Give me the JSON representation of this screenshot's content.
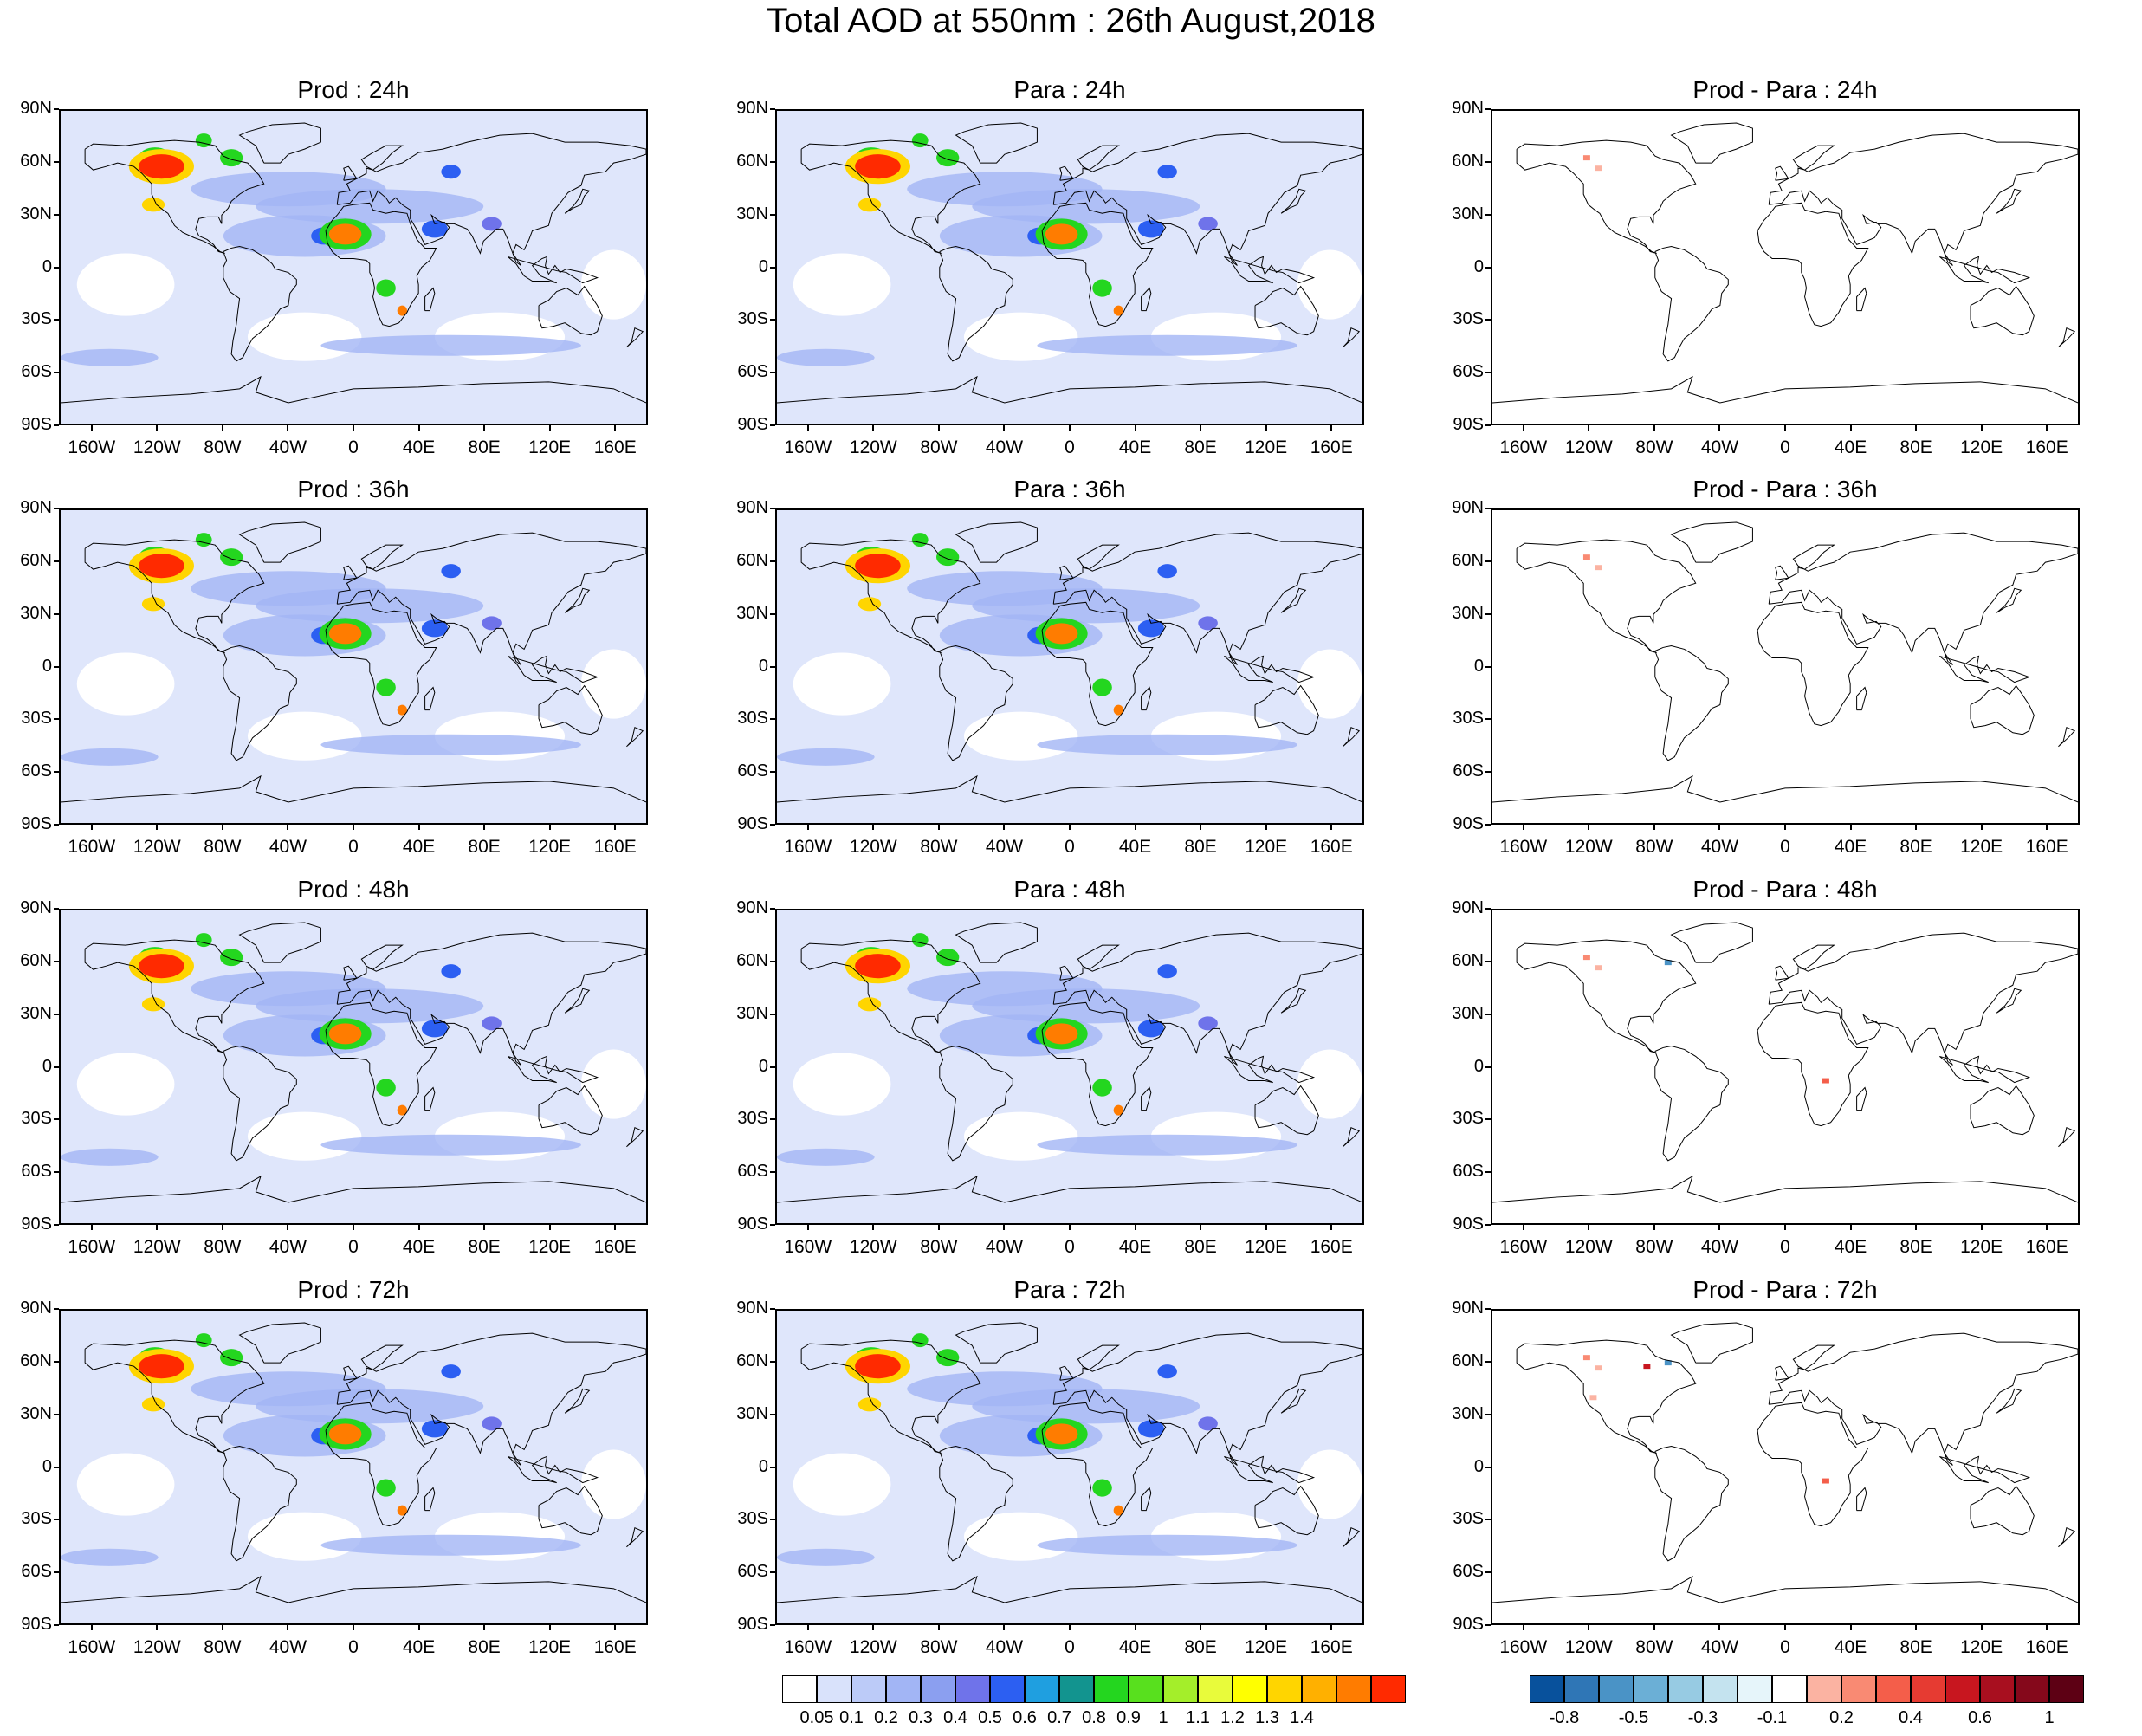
{
  "figure": {
    "title": "Total AOD at 550nm : 26th August,2018"
  },
  "axes": {
    "lat_labels": [
      "90N",
      "60N",
      "30N",
      "0",
      "30S",
      "60S",
      "90S"
    ],
    "lon_labels": [
      "160W",
      "120W",
      "80W",
      "40W",
      "0",
      "40E",
      "80E",
      "120E",
      "160E"
    ]
  },
  "panels": [
    {
      "title": "Prod : 24h",
      "kind": "aod",
      "lead_hours": 24
    },
    {
      "title": "Para : 24h",
      "kind": "aod",
      "lead_hours": 24
    },
    {
      "title": "Prod - Para : 24h",
      "kind": "diff",
      "lead_hours": 24
    },
    {
      "title": "Prod : 36h",
      "kind": "aod",
      "lead_hours": 36
    },
    {
      "title": "Para : 36h",
      "kind": "aod",
      "lead_hours": 36
    },
    {
      "title": "Prod - Para : 36h",
      "kind": "diff",
      "lead_hours": 36
    },
    {
      "title": "Prod : 48h",
      "kind": "aod",
      "lead_hours": 48
    },
    {
      "title": "Para : 48h",
      "kind": "aod",
      "lead_hours": 48
    },
    {
      "title": "Prod - Para : 48h",
      "kind": "diff",
      "lead_hours": 48
    },
    {
      "title": "Prod : 72h",
      "kind": "aod",
      "lead_hours": 72
    },
    {
      "title": "Para : 72h",
      "kind": "aod",
      "lead_hours": 72
    },
    {
      "title": "Prod - Para : 72h",
      "kind": "diff",
      "lead_hours": 72
    }
  ],
  "colorbars": {
    "aod": {
      "colors": [
        "#ffffff",
        "#d9e2fb",
        "#bccbf8",
        "#a2b5f5",
        "#8b9ff0",
        "#6f73ea",
        "#2c5ff2",
        "#1f9fe0",
        "#12948f",
        "#24d61f",
        "#58e01e",
        "#a4ee2a",
        "#e8fb3b",
        "#ffff00",
        "#ffd500",
        "#ffb000",
        "#ff7c00",
        "#ff2a00"
      ],
      "labels": [
        "0.05",
        "0.1",
        "0.2",
        "0.3",
        "0.4",
        "0.5",
        "0.6",
        "0.7",
        "0.8",
        "0.9",
        "1",
        "1.1",
        "1.2",
        "1.3",
        "1.4"
      ]
    },
    "diff": {
      "colors": [
        "#08519c",
        "#2f76b6",
        "#4a93c6",
        "#6bafd6",
        "#97cbe3",
        "#c4e3ef",
        "#e6f5fa",
        "#ffffff",
        "#fbb3a2",
        "#f98a73",
        "#f45e4a",
        "#e63b32",
        "#c8161f",
        "#a80f1f",
        "#85081b",
        "#5d0014"
      ],
      "labels": [
        "-0.8",
        "-0.5",
        "-0.3",
        "-0.1",
        "0.2",
        "0.4",
        "0.6",
        "1"
      ]
    }
  },
  "map_annotations": {
    "aod_hotspots": [
      {
        "region": "Western Canada / Pacific Northwest smoke",
        "lon": -118,
        "lat": 58,
        "level": "high"
      },
      {
        "region": "California",
        "lon": -120,
        "lat": 36,
        "level": "moderate"
      },
      {
        "region": "Eastern Canada",
        "lon": -75,
        "lat": 60,
        "level": "moderate"
      },
      {
        "region": "Sahara dust",
        "lon": -5,
        "lat": 19,
        "level": "high"
      },
      {
        "region": "Central Africa biomass burning",
        "lon": 20,
        "lat": -10,
        "level": "moderate"
      },
      {
        "region": "Arabian Peninsula",
        "lon": 50,
        "lat": 22,
        "level": "moderate"
      }
    ]
  }
}
